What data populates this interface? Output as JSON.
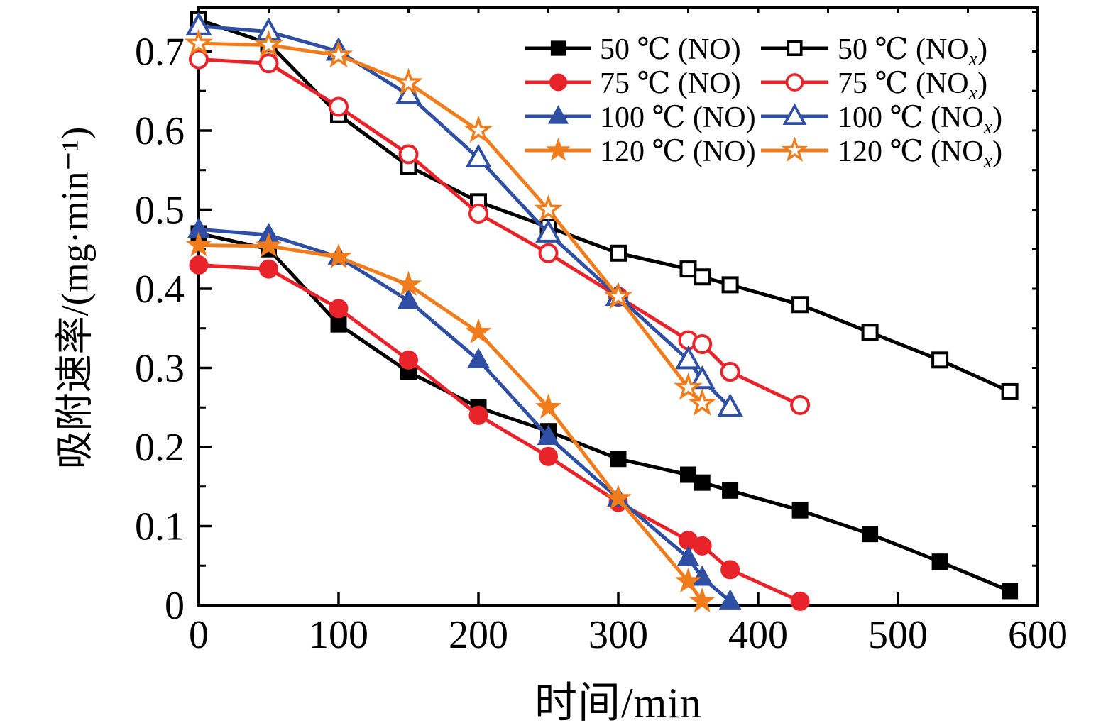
{
  "figure": {
    "background": "#ffffff",
    "text_color": "#000000"
  },
  "chart_data": {
    "type": "line",
    "title": "",
    "xlabel": "时间/min",
    "ylabel": "吸附速率/(mg·min⁻¹)",
    "xlim": [
      0,
      600
    ],
    "ylim": [
      0,
      0.756
    ],
    "xticks": [
      0,
      100,
      200,
      300,
      400,
      500,
      600
    ],
    "yticks": [
      0,
      0.1,
      0.2,
      0.3,
      0.4,
      0.5,
      0.6,
      0.7
    ],
    "x_minor_step": 50,
    "y_minor_step": 0.05,
    "grid": false,
    "legend_position": "inside-top-right",
    "series": [
      {
        "name": "50 ℃ (NO)",
        "legend": {
          "pre": "50 ℃ (NO",
          "sub": "",
          "post": ")"
        },
        "color": "#000000",
        "marker": "square",
        "fill": "filled",
        "points": [
          [
            0,
            0.47
          ],
          [
            50,
            0.45
          ],
          [
            100,
            0.355
          ],
          [
            150,
            0.295
          ],
          [
            200,
            0.25
          ],
          [
            250,
            0.22
          ],
          [
            300,
            0.185
          ],
          [
            350,
            0.165
          ],
          [
            360,
            0.155
          ],
          [
            380,
            0.145
          ],
          [
            430,
            0.12
          ],
          [
            480,
            0.09
          ],
          [
            530,
            0.055
          ],
          [
            580,
            0.018
          ]
        ]
      },
      {
        "name": "75 ℃ (NO)",
        "legend": {
          "pre": "75 ℃ (NO",
          "sub": "",
          "post": ")"
        },
        "color": "#e8232a",
        "marker": "circle",
        "fill": "filled",
        "points": [
          [
            0,
            0.43
          ],
          [
            50,
            0.425
          ],
          [
            100,
            0.375
          ],
          [
            150,
            0.31
          ],
          [
            200,
            0.24
          ],
          [
            250,
            0.188
          ],
          [
            300,
            0.13
          ],
          [
            350,
            0.082
          ],
          [
            360,
            0.075
          ],
          [
            380,
            0.045
          ],
          [
            430,
            0.005
          ]
        ]
      },
      {
        "name": "100 ℃ (NO)",
        "legend": {
          "pre": "100 ℃ (NO",
          "sub": "",
          "post": ")"
        },
        "color": "#2e4fa3",
        "marker": "triangle",
        "fill": "filled",
        "points": [
          [
            0,
            0.475
          ],
          [
            50,
            0.468
          ],
          [
            100,
            0.44
          ],
          [
            150,
            0.385
          ],
          [
            200,
            0.31
          ],
          [
            250,
            0.213
          ],
          [
            300,
            0.135
          ],
          [
            350,
            0.06
          ],
          [
            360,
            0.035
          ],
          [
            380,
            0.005
          ]
        ]
      },
      {
        "name": "120 ℃ (NO)",
        "legend": {
          "pre": "120 ℃ (NO",
          "sub": "",
          "post": ")"
        },
        "color": "#f07c1c",
        "marker": "star",
        "fill": "filled",
        "points": [
          [
            0,
            0.455
          ],
          [
            50,
            0.454
          ],
          [
            100,
            0.44
          ],
          [
            150,
            0.405
          ],
          [
            200,
            0.345
          ],
          [
            250,
            0.25
          ],
          [
            300,
            0.135
          ],
          [
            350,
            0.03
          ],
          [
            360,
            0.005
          ]
        ]
      },
      {
        "name": "50 ℃ (NOx)",
        "legend": {
          "pre": "50 ℃ (NO",
          "sub": "x",
          "post": ")"
        },
        "color": "#000000",
        "marker": "square",
        "fill": "open",
        "points": [
          [
            0,
            0.74
          ],
          [
            50,
            0.71
          ],
          [
            100,
            0.62
          ],
          [
            150,
            0.555
          ],
          [
            200,
            0.51
          ],
          [
            250,
            0.478
          ],
          [
            300,
            0.445
          ],
          [
            350,
            0.425
          ],
          [
            360,
            0.415
          ],
          [
            380,
            0.405
          ],
          [
            430,
            0.38
          ],
          [
            480,
            0.345
          ],
          [
            530,
            0.31
          ],
          [
            580,
            0.27
          ]
        ]
      },
      {
        "name": "75 ℃ (NOx)",
        "legend": {
          "pre": "75 ℃ (NO",
          "sub": "x",
          "post": ")"
        },
        "color": "#e8232a",
        "marker": "circle",
        "fill": "open",
        "points": [
          [
            0,
            0.69
          ],
          [
            50,
            0.685
          ],
          [
            100,
            0.63
          ],
          [
            150,
            0.57
          ],
          [
            200,
            0.495
          ],
          [
            250,
            0.445
          ],
          [
            300,
            0.39
          ],
          [
            350,
            0.335
          ],
          [
            360,
            0.33
          ],
          [
            380,
            0.295
          ],
          [
            430,
            0.253
          ]
        ]
      },
      {
        "name": "100 ℃ (NOx)",
        "legend": {
          "pre": "100 ℃ (NO",
          "sub": "x",
          "post": ")"
        },
        "color": "#2e4fa3",
        "marker": "triangle",
        "fill": "open",
        "points": [
          [
            0,
            0.732
          ],
          [
            50,
            0.725
          ],
          [
            100,
            0.7
          ],
          [
            150,
            0.645
          ],
          [
            200,
            0.565
          ],
          [
            250,
            0.47
          ],
          [
            300,
            0.39
          ],
          [
            350,
            0.31
          ],
          [
            360,
            0.285
          ],
          [
            380,
            0.25
          ]
        ]
      },
      {
        "name": "120 ℃ (NOx)",
        "legend": {
          "pre": "120 ℃ (NO",
          "sub": "x",
          "post": ")"
        },
        "color": "#f07c1c",
        "marker": "star",
        "fill": "open",
        "points": [
          [
            0,
            0.71
          ],
          [
            50,
            0.708
          ],
          [
            100,
            0.695
          ],
          [
            150,
            0.66
          ],
          [
            200,
            0.6
          ],
          [
            250,
            0.5
          ],
          [
            300,
            0.39
          ],
          [
            350,
            0.275
          ],
          [
            360,
            0.255
          ]
        ]
      }
    ]
  }
}
